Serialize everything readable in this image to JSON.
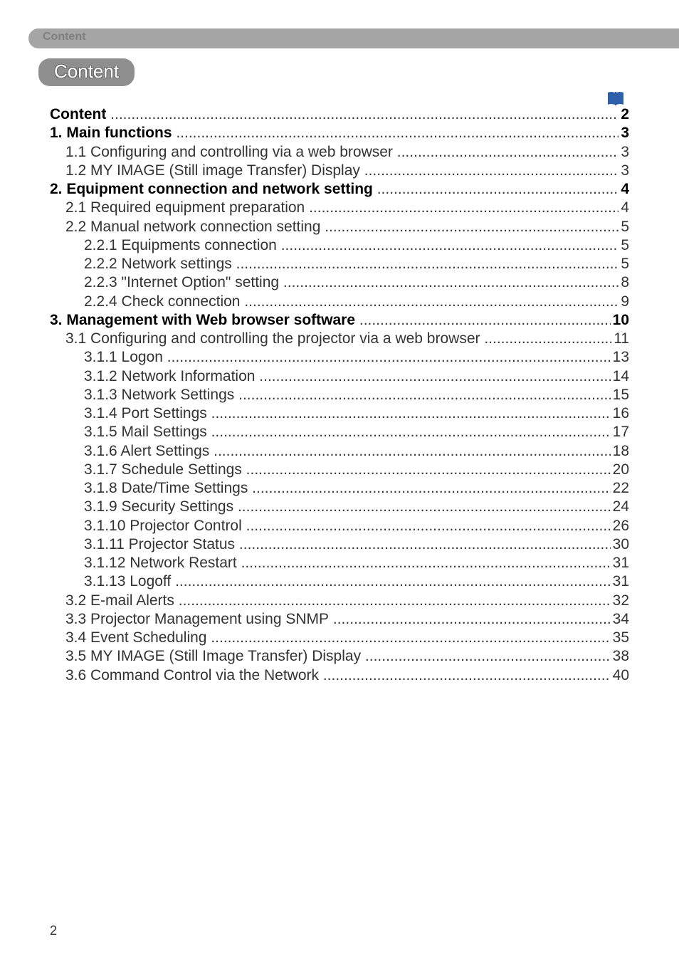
{
  "header_label": "Content",
  "title": "Content",
  "leader_char": ".",
  "page_number": "2",
  "colors": {
    "header_bar": "#a5a5a5",
    "header_label_text": "#7f7f7f",
    "pill_bg": "#8f8f8f",
    "pill_text": "#ffffff",
    "pill_outline": "#6a6a6a",
    "body_text": "#333333",
    "bold_text": "#000000",
    "icon_fill": "#2f5fa8",
    "page_bg": "#ffffff"
  },
  "toc": [
    {
      "title": "Content",
      "page": "2",
      "indent": 0,
      "bold": true
    },
    {
      "title": "1. Main functions",
      "page": "3",
      "indent": 0,
      "bold": true
    },
    {
      "title": "1.1 Configuring and controlling via a web browser",
      "page": "3",
      "indent": 1,
      "bold": false
    },
    {
      "title": "1.2 MY IMAGE (Still image Transfer) Display",
      "page": "3",
      "indent": 1,
      "bold": false
    },
    {
      "title": "2. Equipment connection and network setting",
      "page": "4",
      "indent": 0,
      "bold": true
    },
    {
      "title": "2.1 Required equipment preparation",
      "page": "4",
      "indent": 1,
      "bold": false
    },
    {
      "title": "2.2 Manual network connection setting",
      "page": "5",
      "indent": 1,
      "bold": false
    },
    {
      "title": "2.2.1 Equipments connection",
      "page": "5",
      "indent": 2,
      "bold": false
    },
    {
      "title": "2.2.2 Network settings",
      "page": "5",
      "indent": 2,
      "bold": false
    },
    {
      "title": "2.2.3 \"Internet Option\" setting",
      "page": "8",
      "indent": 2,
      "bold": false
    },
    {
      "title": "2.2.4 Check connection",
      "page": "9",
      "indent": 2,
      "bold": false
    },
    {
      "title": "3. Management with Web browser software",
      "page": "10",
      "indent": 0,
      "bold": true
    },
    {
      "title": "3.1 Configuring and controlling the projector via a web browser",
      "page": "11",
      "indent": 1,
      "bold": false
    },
    {
      "title": "3.1.1 Logon",
      "page": "13",
      "indent": 2,
      "bold": false
    },
    {
      "title": "3.1.2 Network Information",
      "page": "14",
      "indent": 2,
      "bold": false
    },
    {
      "title": "3.1.3 Network Settings",
      "page": "15",
      "indent": 2,
      "bold": false
    },
    {
      "title": "3.1.4 Port Settings",
      "page": "16",
      "indent": 2,
      "bold": false
    },
    {
      "title": "3.1.5 Mail Settings",
      "page": "17",
      "indent": 2,
      "bold": false
    },
    {
      "title": "3.1.6 Alert Settings",
      "page": "18",
      "indent": 2,
      "bold": false
    },
    {
      "title": "3.1.7 Schedule Settings",
      "page": "20",
      "indent": 2,
      "bold": false
    },
    {
      "title": "3.1.8 Date/Time Settings",
      "page": "22",
      "indent": 2,
      "bold": false
    },
    {
      "title": "3.1.9 Security Settings",
      "page": "24",
      "indent": 2,
      "bold": false
    },
    {
      "title": "3.1.10 Projector Control",
      "page": "26",
      "indent": 2,
      "bold": false
    },
    {
      "title": "3.1.11 Projector Status",
      "page": "30",
      "indent": 2,
      "bold": false
    },
    {
      "title": "3.1.12 Network Restart",
      "page": "31",
      "indent": 2,
      "bold": false
    },
    {
      "title": "3.1.13 Logoff",
      "page": "31",
      "indent": 2,
      "bold": false
    },
    {
      "title": "3.2 E-mail Alerts",
      "page": "32",
      "indent": 1,
      "bold": false
    },
    {
      "title": "3.3 Projector Management using SNMP",
      "page": "34",
      "indent": 1,
      "bold": false
    },
    {
      "title": "3.4 Event Scheduling",
      "page": "35",
      "indent": 1,
      "bold": false
    },
    {
      "title": "3.5 MY IMAGE (Still Image Transfer) Display",
      "page": "38",
      "indent": 1,
      "bold": false
    },
    {
      "title": "3.6 Command Control via the Network",
      "page": "40",
      "indent": 1,
      "bold": false
    }
  ]
}
